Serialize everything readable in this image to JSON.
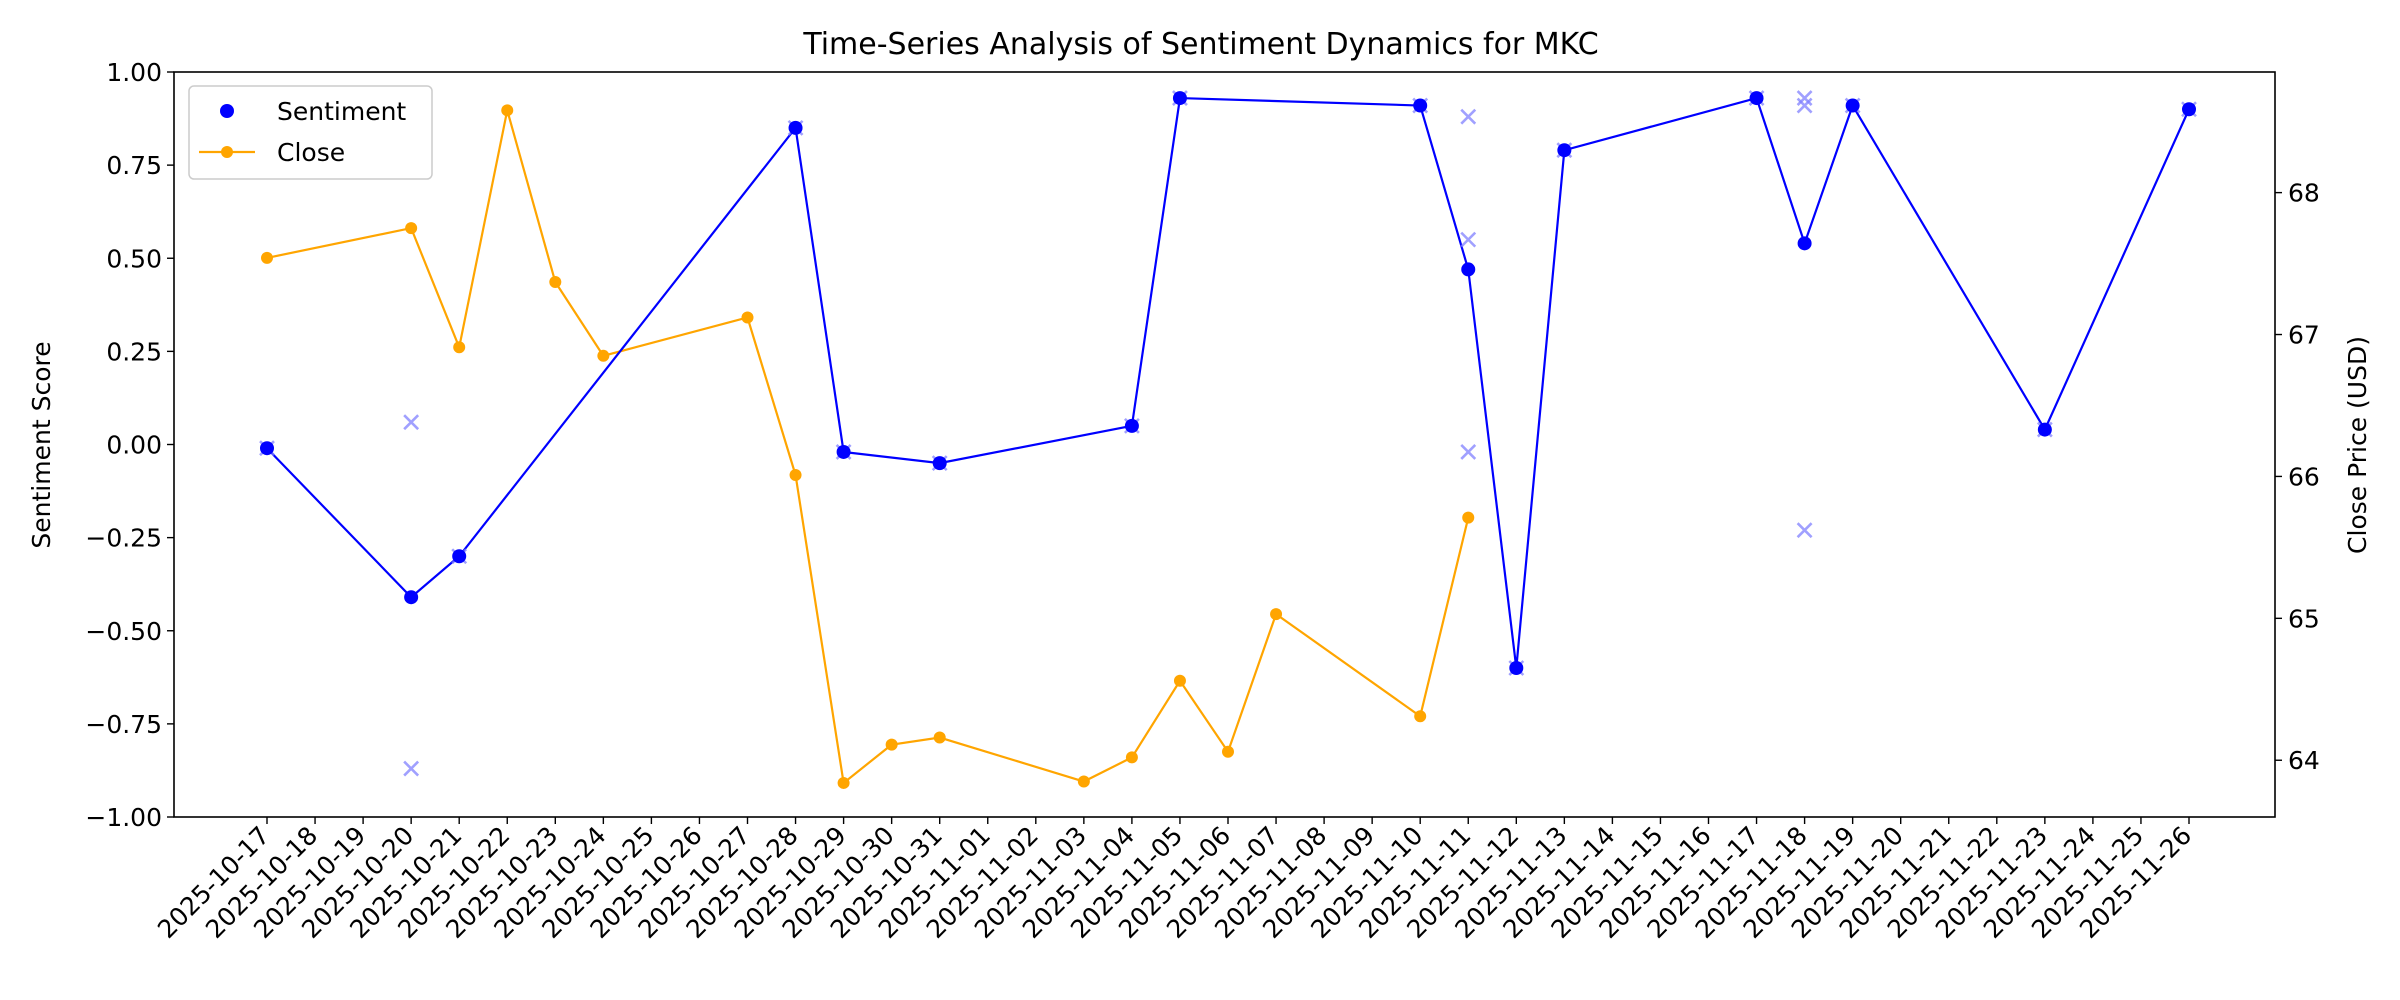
{
  "chart_data": {
    "type": "line",
    "title": "Time-Series Analysis of Sentiment Dynamics for MKC",
    "xlabel": "",
    "ylabel_left": "Sentiment Score",
    "ylabel_right": "Close Price (USD)",
    "ylim_left": [
      -1.0,
      1.0
    ],
    "ylim_right": [
      63.6,
      68.85
    ],
    "yticks_left": [
      "−1.00",
      "−0.75",
      "−0.50",
      "−0.25",
      "0.00",
      "0.25",
      "0.50",
      "0.75",
      "1.00"
    ],
    "yticks_right": [
      "64",
      "65",
      "66",
      "67",
      "68"
    ],
    "x_ticks": [
      "2025-10-17",
      "2025-10-18",
      "2025-10-19",
      "2025-10-20",
      "2025-10-21",
      "2025-10-22",
      "2025-10-23",
      "2025-10-24",
      "2025-10-25",
      "2025-10-26",
      "2025-10-27",
      "2025-10-28",
      "2025-10-29",
      "2025-10-30",
      "2025-10-31",
      "2025-11-01",
      "2025-11-02",
      "2025-11-03",
      "2025-11-04",
      "2025-11-05",
      "2025-11-06",
      "2025-11-07",
      "2025-11-08",
      "2025-11-09",
      "2025-11-10",
      "2025-11-11",
      "2025-11-12",
      "2025-11-13",
      "2025-11-14",
      "2025-11-15",
      "2025-11-16",
      "2025-11-17",
      "2025-11-18",
      "2025-11-19",
      "2025-11-20",
      "2025-11-21",
      "2025-11-22",
      "2025-11-23",
      "2025-11-24",
      "2025-11-25",
      "2025-11-26"
    ],
    "grid": false,
    "legend_position": "top-left",
    "colors": {
      "sentiment": "#0000ff",
      "close": "#ffa500",
      "raw": "#8080ff"
    },
    "series": [
      {
        "name": "Sentiment",
        "axis": "left",
        "x": [
          "2025-10-17",
          "2025-10-20",
          "2025-10-21",
          "2025-10-28",
          "2025-10-29",
          "2025-10-31",
          "2025-11-04",
          "2025-11-05",
          "2025-11-10",
          "2025-11-11",
          "2025-11-12",
          "2025-11-13",
          "2025-11-17",
          "2025-11-18",
          "2025-11-19",
          "2025-11-23",
          "2025-11-26"
        ],
        "values": [
          -0.01,
          -0.41,
          -0.3,
          0.85,
          -0.02,
          -0.05,
          0.05,
          0.93,
          0.91,
          0.47,
          -0.6,
          0.79,
          0.93,
          0.54,
          0.91,
          0.04,
          0.9
        ]
      },
      {
        "name": "Close",
        "axis": "right",
        "x": [
          "2025-10-17",
          "2025-10-20",
          "2025-10-21",
          "2025-10-22",
          "2025-10-23",
          "2025-10-24",
          "2025-10-27",
          "2025-10-28",
          "2025-10-29",
          "2025-10-30",
          "2025-10-31",
          "2025-11-03",
          "2025-11-04",
          "2025-11-05",
          "2025-11-06",
          "2025-11-07",
          "2025-11-10",
          "2025-11-11"
        ],
        "values": [
          67.54,
          67.75,
          66.91,
          68.58,
          67.37,
          66.85,
          67.12,
          66.01,
          63.84,
          64.11,
          64.16,
          63.85,
          64.02,
          64.56,
          64.06,
          65.03,
          64.31,
          65.71
        ]
      },
      {
        "axis": "left",
        "marker": "x",
        "x": [
          "2025-10-17",
          "2025-10-20",
          "2025-10-20",
          "2025-10-21",
          "2025-10-28",
          "2025-10-29",
          "2025-10-31",
          "2025-11-04",
          "2025-11-05",
          "2025-11-10",
          "2025-11-11",
          "2025-11-11",
          "2025-11-11",
          "2025-11-12",
          "2025-11-13",
          "2025-11-17",
          "2025-11-18",
          "2025-11-18",
          "2025-11-18",
          "2025-11-19",
          "2025-11-23",
          "2025-11-26"
        ],
        "values": [
          -0.01,
          0.06,
          -0.87,
          -0.3,
          0.85,
          -0.02,
          -0.05,
          0.05,
          0.93,
          0.91,
          0.88,
          0.55,
          -0.02,
          -0.6,
          0.79,
          0.93,
          0.93,
          0.91,
          -0.23,
          0.91,
          0.04,
          0.9
        ]
      }
    ]
  }
}
